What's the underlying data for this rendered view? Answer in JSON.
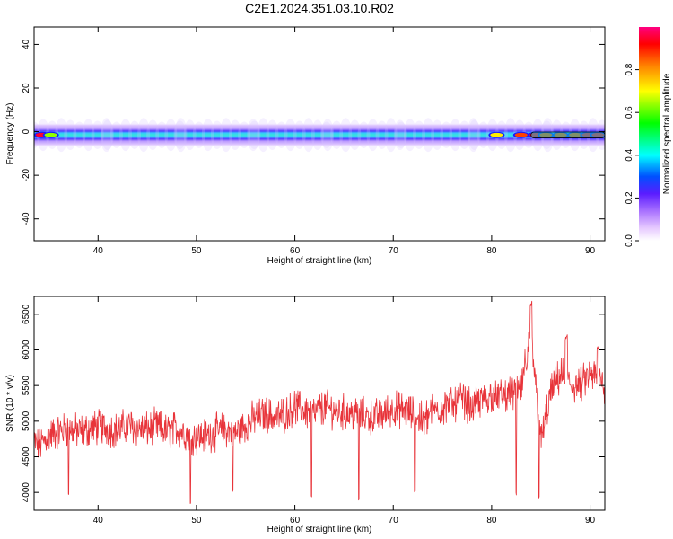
{
  "figure_title": "C2E1.2024.351.03.10.R02",
  "colors": {
    "snr_line": "#e8343a",
    "axis": "#000000"
  },
  "colorbar": {
    "label": "Normalized spectral amplitude",
    "ticks": [
      "0.0",
      "0.2",
      "0.4",
      "0.6",
      "0.8"
    ],
    "tick_values": [
      0.0,
      0.2,
      0.4,
      0.6,
      0.8
    ],
    "range": [
      0,
      1
    ]
  },
  "chart_data": [
    {
      "type": "heatmap",
      "title": "",
      "xlabel": "Height of straight line (km)",
      "ylabel": "Frequency (Hz)",
      "xlim": [
        33.5,
        91.5
      ],
      "ylim": [
        -50,
        48
      ],
      "x_ticks": [
        40,
        50,
        60,
        70,
        80,
        90
      ],
      "y_ticks": [
        40,
        20,
        0,
        -20,
        -40
      ],
      "band_center_hz": -1.5,
      "band_profile": [
        {
          "offset_hz": 0.0,
          "amplitude": 0.5
        },
        {
          "offset_hz": 1.0,
          "amplitude": 0.42
        },
        {
          "offset_hz": 2.0,
          "amplitude": 0.25
        },
        {
          "offset_hz": 3.0,
          "amplitude": 0.1
        },
        {
          "offset_hz": 4.5,
          "amplitude": 0.03
        }
      ],
      "hotspots": [
        {
          "x": 34.3,
          "amplitude": 0.95
        },
        {
          "x": 35.2,
          "amplitude": 0.6
        },
        {
          "x": 80.5,
          "amplitude": 0.7
        },
        {
          "x": 83.0,
          "amplitude": 0.85
        },
        {
          "x": 84.5,
          "amplitude": 0.95
        },
        {
          "x": 85.5,
          "amplitude": 0.9
        },
        {
          "x": 87.0,
          "amplitude": 0.85
        },
        {
          "x": 88.5,
          "amplitude": 0.9
        },
        {
          "x": 89.8,
          "amplitude": 0.95
        },
        {
          "x": 90.8,
          "amplitude": 0.92
        }
      ]
    },
    {
      "type": "line",
      "title": "",
      "xlabel": "Height of straight line (km)",
      "ylabel": "SNR (10 * v/v)",
      "xlim": [
        33.5,
        91.5
      ],
      "ylim": [
        3750,
        6750
      ],
      "x_ticks": [
        40,
        50,
        60,
        70,
        80,
        90
      ],
      "y_ticks": [
        4000,
        4500,
        5000,
        5500,
        6000,
        6500
      ],
      "series": [
        {
          "color": "#e8343a",
          "x": [
            33.5,
            34,
            35,
            36,
            37,
            38,
            39,
            40,
            41,
            42,
            43,
            44,
            45,
            46,
            47,
            48,
            49,
            50,
            51,
            52,
            53,
            54,
            55,
            56,
            57,
            58,
            59,
            60,
            61,
            62,
            63,
            64,
            65,
            66,
            67,
            68,
            69,
            70,
            71,
            72,
            73,
            74,
            75,
            76,
            77,
            78,
            79,
            80,
            81,
            82,
            83,
            84,
            85,
            86,
            87,
            88,
            89,
            90,
            91,
            91.5
          ],
          "y": [
            4700,
            4650,
            4800,
            4850,
            4900,
            4850,
            4880,
            4920,
            4900,
            4870,
            4950,
            4900,
            4880,
            4930,
            4850,
            4900,
            4820,
            4780,
            4800,
            4850,
            4880,
            4830,
            4950,
            5050,
            5100,
            5050,
            5100,
            5200,
            5150,
            5100,
            5200,
            5150,
            5120,
            5100,
            5080,
            5050,
            5100,
            5180,
            5150,
            5100,
            5000,
            5150,
            5200,
            5250,
            5300,
            5200,
            5300,
            5350,
            5350,
            5400,
            5450,
            6200,
            4700,
            5400,
            5650,
            5500,
            5500,
            5650,
            5600,
            5500
          ],
          "dips": [
            {
              "x": 37.0,
              "y": 3920
            },
            {
              "x": 49.4,
              "y": 3800
            },
            {
              "x": 53.7,
              "y": 3980
            },
            {
              "x": 61.7,
              "y": 3920
            },
            {
              "x": 66.5,
              "y": 3870
            },
            {
              "x": 72.2,
              "y": 3980
            },
            {
              "x": 82.5,
              "y": 3940
            },
            {
              "x": 84.8,
              "y": 3900
            }
          ],
          "peaks": [
            {
              "x": 84.0,
              "y": 6720
            },
            {
              "x": 87.6,
              "y": 6250
            },
            {
              "x": 90.8,
              "y": 6100
            }
          ]
        }
      ]
    }
  ]
}
